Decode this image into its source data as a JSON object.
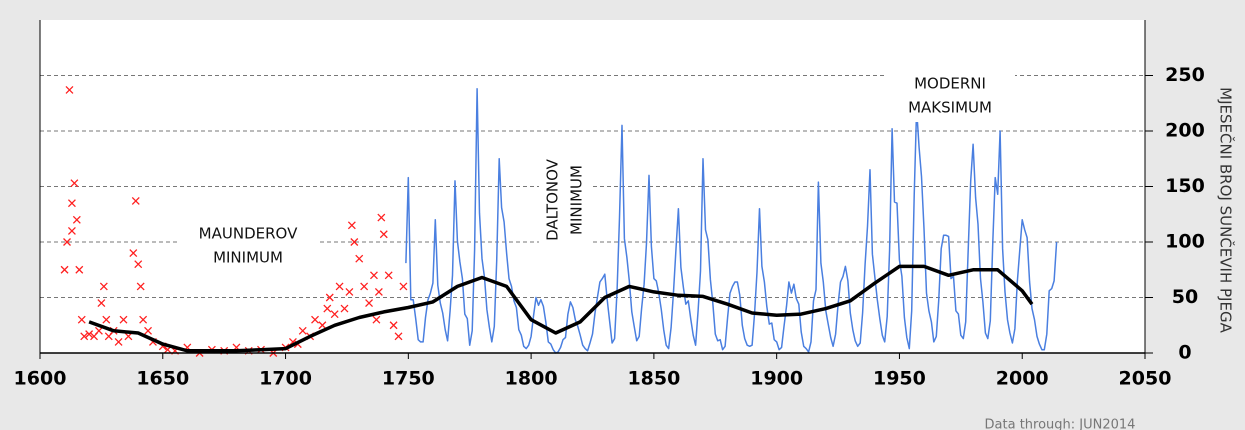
{
  "chart_data": {
    "type": "line",
    "y_axis_label": "MJESEČNI BROJ SUNČEVIH PJEGA",
    "note": "Data through:  JUN2014",
    "annotations": [
      [
        "MAUNDEROV",
        "MINIMUM"
      ],
      [
        "DALTONOV",
        "MINIMUM"
      ],
      [
        "MODERNI",
        "MAKSIMUM"
      ]
    ],
    "xlim": [
      1600,
      2050
    ],
    "xticks": [
      1600,
      1650,
      1700,
      1750,
      1800,
      1850,
      1900,
      1950,
      2000,
      2050
    ],
    "ylim": [
      0,
      300
    ],
    "yticks": [
      0,
      50,
      100,
      150,
      200,
      250
    ],
    "grid": true,
    "series": [
      {
        "type": "scatter",
        "color": "#ff2020",
        "x": [
          1610,
          1611,
          1612,
          1613,
          1613,
          1614,
          1615,
          1616,
          1617,
          1618,
          1620,
          1622,
          1624,
          1625,
          1626,
          1627,
          1628,
          1630,
          1632,
          1634,
          1636,
          1638,
          1639,
          1640,
          1641,
          1642,
          1644,
          1646,
          1650,
          1652,
          1655,
          1660,
          1665,
          1670,
          1675,
          1680,
          1685,
          1690,
          1695,
          1700,
          1703,
          1705,
          1707,
          1710,
          1712,
          1715,
          1717,
          1718,
          1720,
          1722,
          1724,
          1726,
          1727,
          1728,
          1730,
          1732,
          1734,
          1736,
          1737,
          1738,
          1739,
          1740,
          1742,
          1744,
          1746,
          1748
        ],
        "values": [
          75,
          100,
          237,
          135,
          110,
          153,
          120,
          75,
          30,
          15,
          17,
          15,
          20,
          45,
          60,
          30,
          15,
          20,
          10,
          30,
          15,
          90,
          137,
          80,
          60,
          30,
          20,
          10,
          6,
          3,
          2,
          5,
          0,
          3,
          2,
          5,
          2,
          3,
          0,
          5,
          10,
          8,
          20,
          15,
          30,
          25,
          40,
          50,
          35,
          60,
          40,
          55,
          115,
          100,
          85,
          60,
          45,
          70,
          30,
          55,
          122,
          107,
          70,
          25,
          15,
          60
        ]
      },
      {
        "type": "line",
        "color": "#4a7fe0",
        "x": [
          1749,
          1750,
          1751,
          1752,
          1753,
          1754,
          1755,
          1756,
          1757,
          1758,
          1759,
          1760,
          1761,
          1762,
          1763,
          1764,
          1765,
          1766,
          1767,
          1768,
          1769,
          1770,
          1771,
          1772,
          1773,
          1774,
          1775,
          1776,
          1777,
          1778,
          1779,
          1780,
          1781,
          1782,
          1783,
          1784,
          1785,
          1786,
          1787,
          1788,
          1789,
          1790,
          1791,
          1792,
          1793,
          1794,
          1795,
          1796,
          1797,
          1798,
          1799,
          1800,
          1801,
          1802,
          1803,
          1804,
          1805,
          1806,
          1807,
          1808,
          1809,
          1810,
          1811,
          1812,
          1813,
          1814,
          1815,
          1816,
          1817,
          1818,
          1819,
          1820,
          1821,
          1822,
          1823,
          1824,
          1825,
          1826,
          1827,
          1828,
          1829,
          1830,
          1831,
          1832,
          1833,
          1834,
          1835,
          1836,
          1837,
          1838,
          1839,
          1840,
          1841,
          1842,
          1843,
          1844,
          1845,
          1846,
          1847,
          1848,
          1849,
          1850,
          1851,
          1852,
          1853,
          1854,
          1855,
          1856,
          1857,
          1858,
          1859,
          1860,
          1861,
          1862,
          1863,
          1864,
          1865,
          1866,
          1867,
          1868,
          1869,
          1870,
          1871,
          1872,
          1873,
          1874,
          1875,
          1876,
          1877,
          1878,
          1879,
          1880,
          1881,
          1882,
          1883,
          1884,
          1885,
          1886,
          1887,
          1888,
          1889,
          1890,
          1891,
          1892,
          1893,
          1894,
          1895,
          1896,
          1897,
          1898,
          1899,
          1900,
          1901,
          1902,
          1903,
          1904,
          1905,
          1906,
          1907,
          1908,
          1909,
          1910,
          1911,
          1912,
          1913,
          1914,
          1915,
          1916,
          1917,
          1918,
          1919,
          1920,
          1921,
          1922,
          1923,
          1924,
          1925,
          1926,
          1927,
          1928,
          1929,
          1930,
          1931,
          1932,
          1933,
          1934,
          1935,
          1936,
          1937,
          1938,
          1939,
          1940,
          1941,
          1942,
          1943,
          1944,
          1945,
          1946,
          1947,
          1948,
          1949,
          1950,
          1951,
          1952,
          1953,
          1954,
          1955,
          1956,
          1957,
          1958,
          1959,
          1960,
          1961,
          1962,
          1963,
          1964,
          1965,
          1966,
          1967,
          1968,
          1969,
          1970,
          1971,
          1972,
          1973,
          1974,
          1975,
          1976,
          1977,
          1978,
          1979,
          1980,
          1981,
          1982,
          1983,
          1984,
          1985,
          1986,
          1987,
          1988,
          1989,
          1990,
          1991,
          1992,
          1993,
          1994,
          1995,
          1996,
          1997,
          1998,
          1999,
          2000,
          2001,
          2002,
          2003,
          2004,
          2005,
          2006,
          2007,
          2008,
          2009,
          2010,
          2011,
          2012,
          2013,
          2014
        ],
        "values": [
          81,
          158,
          48,
          48,
          31,
          12,
          10,
          10,
          32,
          48,
          54,
          63,
          120,
          61,
          45,
          36,
          21,
          11,
          38,
          70,
          155,
          101,
          82,
          67,
          35,
          31,
          7,
          20,
          93,
          238,
          126,
          85,
          68,
          39,
          23,
          10,
          24,
          83,
          175,
          131,
          118,
          90,
          67,
          60,
          47,
          41,
          21,
          16,
          6,
          4,
          7,
          15,
          34,
          50,
          43,
          48,
          42,
          28,
          10,
          8,
          3,
          0,
          1,
          5,
          12,
          14,
          35,
          46,
          41,
          30,
          24,
          16,
          7,
          4,
          2,
          9,
          17,
          36,
          50,
          64,
          67,
          71,
          48,
          28,
          9,
          13,
          57,
          122,
          205,
          103,
          86,
          65,
          37,
          24,
          11,
          15,
          40,
          62,
          99,
          160,
          96,
          67,
          65,
          54,
          39,
          21,
          7,
          4,
          23,
          55,
          94,
          130,
          77,
          59,
          44,
          47,
          31,
          16,
          7,
          38,
          74,
          175,
          111,
          102,
          66,
          45,
          17,
          11,
          12,
          3,
          6,
          32,
          54,
          60,
          64,
          64,
          52,
          25,
          13,
          7,
          6,
          7,
          36,
          73,
          130,
          78,
          64,
          42,
          26,
          27,
          12,
          10,
          3,
          5,
          24,
          42,
          64,
          54,
          62,
          49,
          44,
          19,
          6,
          4,
          1,
          10,
          47,
          57,
          154,
          81,
          64,
          38,
          26,
          14,
          6,
          17,
          44,
          64,
          69,
          78,
          65,
          36,
          21,
          11,
          6,
          9,
          36,
          80,
          114,
          165,
          89,
          68,
          48,
          31,
          16,
          10,
          33,
          93,
          202,
          136,
          135,
          84,
          69,
          32,
          14,
          4,
          38,
          142,
          220,
          185,
          159,
          112,
          54,
          38,
          28,
          10,
          15,
          47,
          94,
          106,
          106,
          105,
          67,
          69,
          38,
          35,
          16,
          13,
          28,
          93,
          155,
          188,
          140,
          116,
          67,
          46,
          18,
          13,
          29,
          100,
          158,
          143,
          200,
          94,
          55,
          30,
          18,
          9,
          22,
          64,
          93,
          120,
          111,
          104,
          64,
          40,
          30,
          15,
          8,
          3,
          3,
          17,
          56,
          58,
          65,
          100
        ]
      },
      {
        "type": "line",
        "color": "#000000",
        "x": [
          1620,
          1630,
          1640,
          1650,
          1660,
          1670,
          1680,
          1690,
          1700,
          1710,
          1720,
          1730,
          1740,
          1750,
          1760,
          1770,
          1780,
          1790,
          1800,
          1810,
          1820,
          1830,
          1840,
          1850,
          1860,
          1870,
          1880,
          1890,
          1900,
          1910,
          1920,
          1930,
          1940,
          1950,
          1960,
          1970,
          1980,
          1990,
          2000,
          2004
        ],
        "values": [
          28,
          20,
          18,
          8,
          2,
          2,
          2,
          3,
          4,
          15,
          25,
          32,
          37,
          41,
          46,
          60,
          68,
          60,
          30,
          18,
          28,
          50,
          60,
          55,
          52,
          51,
          44,
          36,
          34,
          35,
          40,
          47,
          63,
          78,
          78,
          70,
          75,
          75,
          56,
          44
        ]
      }
    ]
  }
}
